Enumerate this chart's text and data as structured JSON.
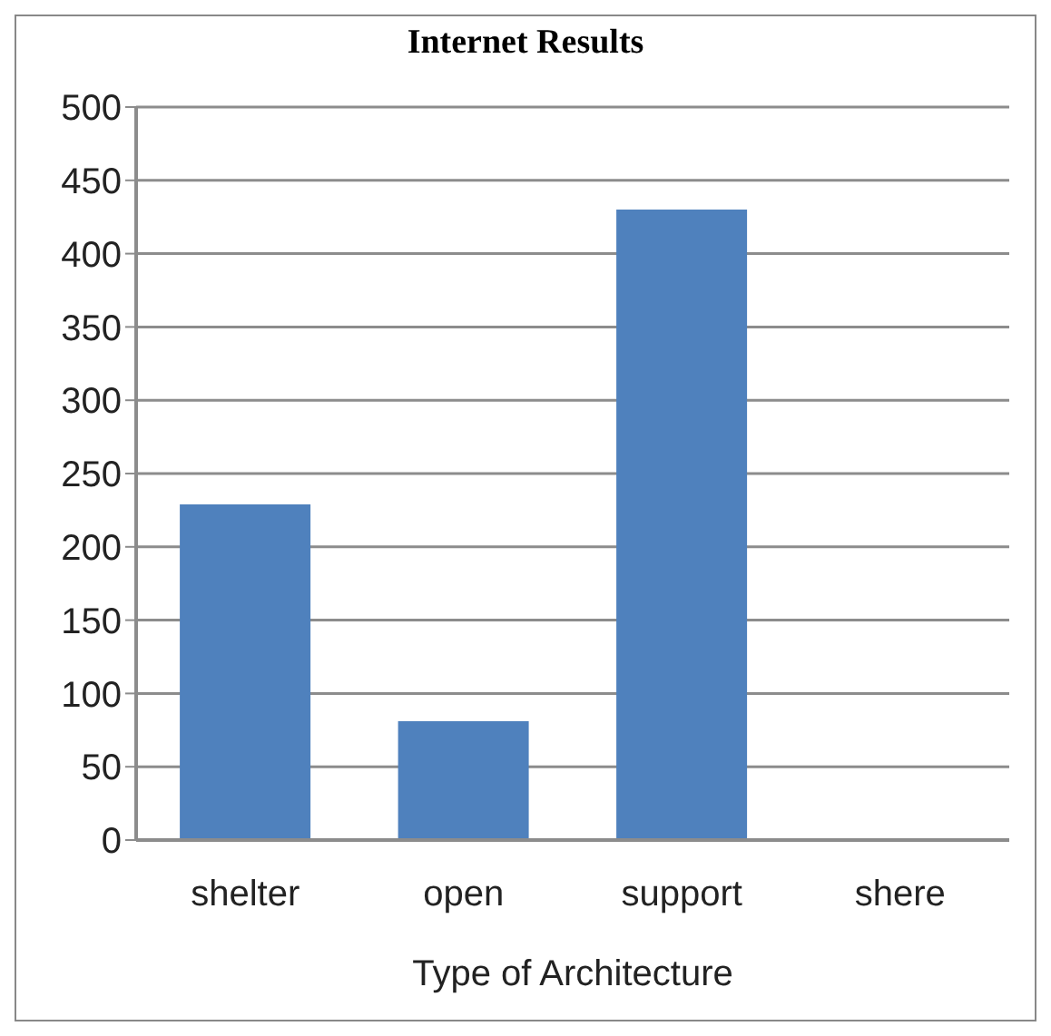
{
  "chart_data": {
    "type": "bar",
    "title": "Internet Results",
    "xlabel": "Type of  Architecture",
    "categories": [
      "shelter",
      "open",
      "support",
      "shere"
    ],
    "values": [
      229,
      81,
      430,
      1
    ],
    "color": "#4f81bd",
    "ylim": [
      0,
      500
    ],
    "yticks": [
      0,
      50,
      100,
      150,
      200,
      250,
      300,
      350,
      400,
      450,
      500
    ],
    "grid": "y"
  }
}
